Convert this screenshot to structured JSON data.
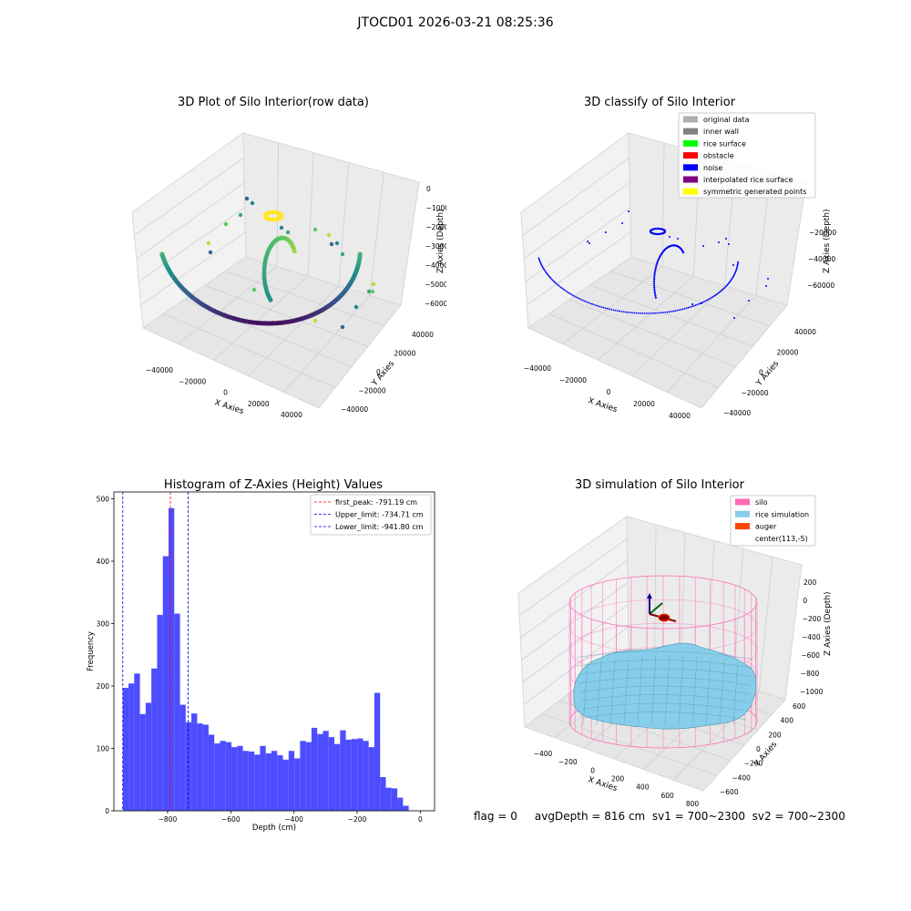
{
  "figure": {
    "title": "JTOCD01 2026-03-21 08:25:36",
    "status_text": "flag = 0     avgDepth = 816 cm  sv1 = 700~2300  sv2 = 700~2300"
  },
  "colors": {
    "hist_bar": "#4d4dff",
    "first_peak": "#ff0000",
    "limits": "#0000cc",
    "noise": "#0000ff",
    "silo": "#ff69b4",
    "rice": "#87ceeb",
    "auger": "#ff4500"
  },
  "chart_data": [
    {
      "type": "scatter",
      "title": "3D Plot of Silo Interior(row data)",
      "xlabel": "X Axies",
      "ylabel": "Y Axies",
      "zlabel": "Z Axies (Depth)",
      "x_ticks": [
        "−40000",
        "−20000",
        "0",
        "20000",
        "40000"
      ],
      "y_ticks": [
        "−40000",
        "−20000",
        "0",
        "20000",
        "40000"
      ],
      "z_ticks": [
        "0",
        "−10000",
        "−20000",
        "−30000",
        "−40000",
        "−50000",
        "−60000"
      ],
      "colormap": "viridis"
    },
    {
      "type": "scatter",
      "title": "3D classify of Silo Interior",
      "xlabel": "X Axies",
      "ylabel": "Y Axies",
      "zlabel": "Z Axies (Depth)",
      "x_ticks": [
        "−40000",
        "−20000",
        "0",
        "20000",
        "40000"
      ],
      "y_ticks": [
        "−40000",
        "−20000",
        "0",
        "20000",
        "40000"
      ],
      "z_ticks": [
        "−20000",
        "−40000",
        "−60000"
      ],
      "legend": [
        {
          "label": "original data",
          "color": "#b0b0b0"
        },
        {
          "label": "inner wall",
          "color": "#808080"
        },
        {
          "label": "rice surface",
          "color": "#00ff00"
        },
        {
          "label": "obstacle",
          "color": "#ff0000"
        },
        {
          "label": "noise",
          "color": "#0000ff"
        },
        {
          "label": "interpolated rice surface",
          "color": "#800080"
        },
        {
          "label": "symmetric generated points",
          "color": "#ffff00"
        }
      ],
      "legend_position": "top-right"
    },
    {
      "type": "bar",
      "title": "Histogram of Z-Axies (Height) Values",
      "xlabel": "Depth (cm)",
      "ylabel": "Frequency",
      "xlim": [
        -970,
        45
      ],
      "ylim": [
        0,
        511
      ],
      "x_ticks": [
        -800,
        -600,
        -400,
        -200,
        0
      ],
      "y_ticks": [
        0,
        100,
        200,
        300,
        400,
        500
      ],
      "bin_start": -941.8,
      "bin_width": 18.1,
      "values": [
        197,
        204,
        220,
        155,
        173,
        228,
        314,
        408,
        485,
        316,
        170,
        142,
        156,
        140,
        138,
        122,
        108,
        112,
        110,
        102,
        104,
        96,
        95,
        90,
        104,
        92,
        96,
        89,
        82,
        96,
        84,
        112,
        110,
        133,
        123,
        128,
        118,
        107,
        129,
        114,
        115,
        116,
        112,
        102,
        189,
        54,
        37,
        36,
        21,
        8
      ],
      "vlines": [
        {
          "label": "first_peak: -791.19 cm",
          "x": -791.19,
          "color": "#ff0000"
        },
        {
          "label": "Upper_limit: -734.71 cm",
          "x": -734.71,
          "color": "#0000cc"
        },
        {
          "label": "Lower_limit: -941.80 cm",
          "x": -941.8,
          "color": "#0000cc"
        }
      ],
      "legend_position": "top-right"
    },
    {
      "type": "scatter",
      "title": "3D simulation of Silo Interior",
      "xlabel": "X Axies",
      "ylabel": "Y Axies",
      "zlabel": "Z Axies (Depth)",
      "x_ticks": [
        "−400",
        "−200",
        "0",
        "200",
        "400",
        "600",
        "800"
      ],
      "y_ticks": [
        "−600",
        "−400",
        "−200",
        "0",
        "200",
        "400",
        "600"
      ],
      "z_ticks": [
        "200",
        "0",
        "−200",
        "−400",
        "−600",
        "−800",
        "−1000"
      ],
      "legend": [
        {
          "label": "silo",
          "color": "#ff69b4"
        },
        {
          "label": "rice simulation",
          "color": "#87ceeb"
        },
        {
          "label": "auger",
          "color": "#ff4500"
        },
        {
          "label": "center(113,-5)",
          "color": ""
        }
      ],
      "legend_position": "top-right"
    }
  ]
}
